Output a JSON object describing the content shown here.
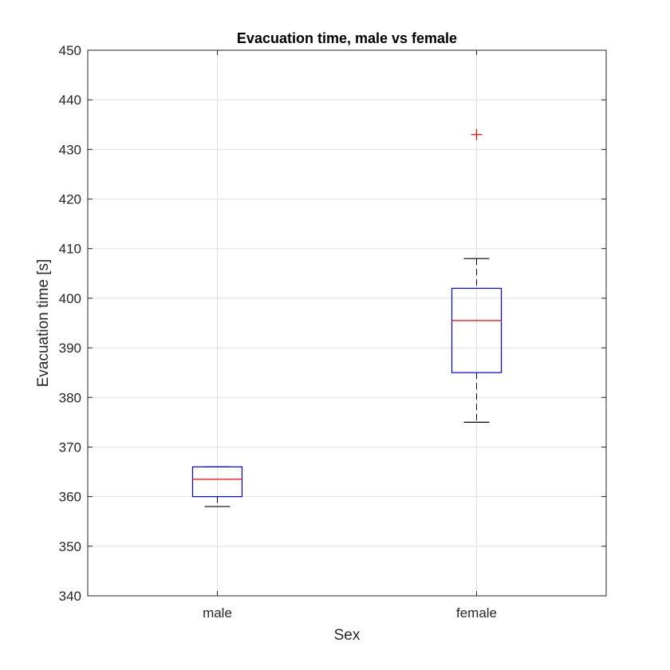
{
  "chart_data": {
    "type": "boxplot",
    "title": "Evacuation time, male vs female",
    "xlabel": "Sex",
    "ylabel": "Evacuation time [s]",
    "ylim": [
      340,
      450
    ],
    "yticks": [
      340,
      350,
      360,
      370,
      380,
      390,
      400,
      410,
      420,
      430,
      440,
      450
    ],
    "categories": [
      "male",
      "female"
    ],
    "grid": true,
    "boxes": [
      {
        "category": "male",
        "whisker_low": 358,
        "q1": 360,
        "median": 363.5,
        "q3": 366,
        "whisker_high": 366,
        "outliers": []
      },
      {
        "category": "female",
        "whisker_low": 375,
        "q1": 385,
        "median": 395.5,
        "q3": 402,
        "whisker_high": 408,
        "outliers": [
          433
        ]
      }
    ],
    "colors": {
      "box": "#0000ff",
      "median": "#ff0000",
      "whisker": "#000000",
      "outlier": "#ff0000",
      "grid": "#dfdfdf",
      "axis": "#262626"
    }
  }
}
